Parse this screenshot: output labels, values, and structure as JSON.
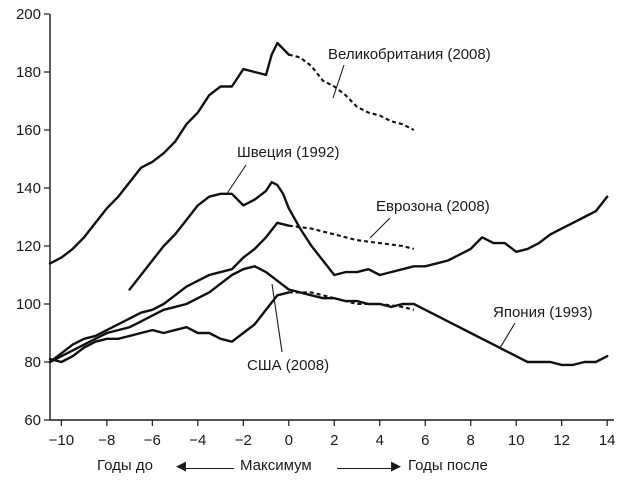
{
  "chart_data": {
    "type": "line",
    "title": "",
    "ylabel": "",
    "xlim": [
      -10.5,
      14.3
    ],
    "ylim": [
      60,
      200
    ],
    "x_ticks": [
      -10,
      -8,
      -6,
      -4,
      -2,
      0,
      2,
      4,
      6,
      8,
      10,
      12,
      14
    ],
    "x_tick_labels": [
      "−10",
      "−8",
      "−6",
      "−4",
      "−2",
      "0",
      "2",
      "4",
      "6",
      "8",
      "10",
      "12",
      "14"
    ],
    "y_ticks": [
      60,
      80,
      100,
      120,
      140,
      160,
      180,
      200
    ],
    "y_tick_labels": [
      "60",
      "80",
      "100",
      "120",
      "140",
      "160",
      "180",
      "200"
    ],
    "xaxis_caption": {
      "left": "Годы до",
      "center": "Максимум",
      "right": "Годы после"
    },
    "series": [
      {
        "name": "Великобритания (2008)",
        "x": [
          -10.5,
          -10,
          -9.5,
          -9,
          -8.5,
          -8,
          -7.5,
          -7,
          -6.5,
          -6,
          -5.5,
          -5,
          -4.5,
          -4,
          -3.5,
          -3,
          -2.5,
          -2,
          -1.5,
          -1,
          -0.75,
          -0.5,
          -0.25,
          0
        ],
        "values": [
          114,
          116,
          119,
          123,
          128,
          133,
          137,
          142,
          147,
          149,
          152,
          156,
          162,
          166,
          172,
          175,
          175,
          181,
          180,
          179,
          186,
          190,
          188,
          186
        ],
        "dashed_x": [
          0,
          0.5,
          1,
          1.5,
          2,
          2.5,
          3,
          3.5,
          4,
          4.5,
          5,
          5.5
        ],
        "dashed_values": [
          186,
          185,
          182,
          177,
          175,
          172,
          168,
          166,
          165,
          163,
          162,
          160
        ]
      },
      {
        "name": "Швеция (1992)",
        "x": [
          -7,
          -6.5,
          -6,
          -5.5,
          -5,
          -4.5,
          -4,
          -3.5,
          -3,
          -2.5,
          -2,
          -1.5,
          -1,
          -0.75,
          -0.5,
          -0.25,
          0,
          0.5,
          1,
          1.5,
          2,
          2.5,
          3,
          3.5,
          4,
          4.5,
          5,
          5.5,
          6,
          6.5,
          7,
          7.5,
          8,
          8.5,
          9,
          9.5,
          10,
          10.5,
          11,
          11.5,
          12,
          12.5,
          13,
          13.5,
          14
        ],
        "values": [
          105,
          110,
          115,
          120,
          124,
          129,
          134,
          137,
          138,
          138,
          134,
          136,
          139,
          142,
          141,
          138,
          133,
          126,
          120,
          115,
          110,
          111,
          111,
          112,
          110,
          111,
          112,
          113,
          113,
          114,
          115,
          117,
          119,
          123,
          121,
          121,
          118,
          119,
          121,
          124,
          126,
          128,
          130,
          132,
          137
        ]
      },
      {
        "name": "Еврозона (2008)",
        "x": [
          -10.5,
          -10,
          -9.5,
          -9,
          -8.5,
          -8,
          -7.5,
          -7,
          -6.5,
          -6,
          -5.5,
          -5,
          -4.5,
          -4,
          -3.5,
          -3,
          -2.5,
          -2,
          -1.5,
          -1,
          -0.5,
          0
        ],
        "values": [
          80,
          83,
          86,
          88,
          89,
          91,
          93,
          95,
          97,
          98,
          100,
          103,
          106,
          108,
          110,
          111,
          112,
          116,
          119,
          123,
          128,
          127
        ],
        "dashed_x": [
          0,
          1,
          2,
          3,
          4,
          5,
          5.5
        ],
        "dashed_values": [
          127,
          126,
          124,
          122,
          121,
          120,
          119
        ]
      },
      {
        "name": "Япония (1993)",
        "x": [
          -10.5,
          -10,
          -9.5,
          -9,
          -8.5,
          -8,
          -7.5,
          -7,
          -6.5,
          -6,
          -5.5,
          -5,
          -4.5,
          -4,
          -3.5,
          -3,
          -2.5,
          -2,
          -1.5,
          -1,
          -0.5,
          0,
          0.5,
          1,
          1.5,
          2,
          2.5,
          3,
          3.5,
          4,
          4.5,
          5,
          5.5,
          6,
          6.5,
          7,
          7.5,
          8,
          8.5,
          9,
          9.5,
          10,
          10.5,
          11,
          11.5,
          12,
          12.5,
          13,
          13.5,
          14
        ],
        "values": [
          80,
          82,
          84,
          86,
          88,
          90,
          91,
          92,
          94,
          96,
          98,
          99,
          100,
          102,
          104,
          107,
          110,
          112,
          113,
          111,
          108,
          105,
          104,
          103,
          102,
          102,
          101,
          101,
          100,
          100,
          99,
          100,
          100,
          98,
          96,
          94,
          92,
          90,
          88,
          86,
          84,
          82,
          80,
          80,
          80,
          79,
          79,
          80,
          80,
          82
        ]
      },
      {
        "name": "США (2008)",
        "x": [
          -10.5,
          -10,
          -9.5,
          -9,
          -8.5,
          -8,
          -7.5,
          -7,
          -6.5,
          -6,
          -5.5,
          -5,
          -4.5,
          -4,
          -3.5,
          -3,
          -2.5,
          -2,
          -1.5,
          -1,
          -0.5,
          0
        ],
        "values": [
          81,
          80,
          82,
          85,
          87,
          88,
          88,
          89,
          90,
          91,
          90,
          91,
          92,
          90,
          90,
          88,
          87,
          90,
          93,
          98,
          103,
          104
        ],
        "dashed_x": [
          0,
          1,
          2,
          3,
          4,
          5,
          5.5
        ],
        "dashed_values": [
          104,
          104,
          102,
          100,
          100,
          99,
          98
        ]
      }
    ],
    "series_labels": [
      {
        "text": "Великобритания (2008)"
      },
      {
        "text": "Швеция (1992)"
      },
      {
        "text": "Еврозона (2008)"
      },
      {
        "text": "Япония (1993)"
      },
      {
        "text": "США (2008)"
      }
    ],
    "grid": false,
    "legend": "none",
    "colors": {
      "line": "#111111",
      "text": "#1a1a1a",
      "background": "#ffffff"
    }
  }
}
